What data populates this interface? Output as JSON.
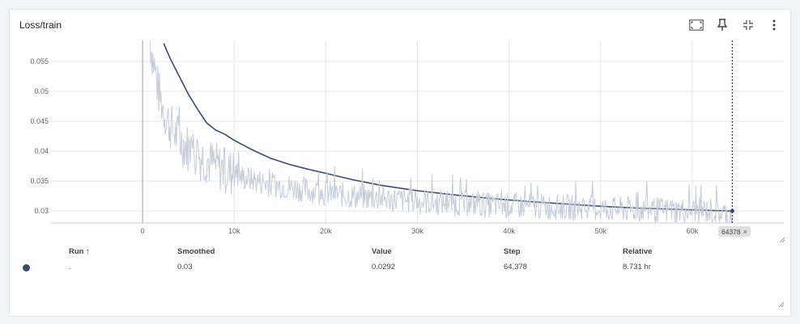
{
  "card": {
    "title": "Loss/train"
  },
  "toolbar": {
    "icons": [
      "fullscreen-icon",
      "pin-icon",
      "fit-domain-icon",
      "more-vert-icon"
    ]
  },
  "colors": {
    "smoothed_line": "#3c4a6b",
    "raw_line": "#c5cbd8",
    "grid": "#e6e6e6",
    "axis": "#9e9e9e",
    "run_dot": "#3c4a6b"
  },
  "chart_data": {
    "type": "line",
    "title": "Loss/train",
    "xlabel": "",
    "ylabel": "",
    "xlim": [
      -10000,
      70000
    ],
    "ylim": [
      0.028,
      0.0585
    ],
    "x_ticks": [
      0,
      10000,
      20000,
      30000,
      40000,
      50000,
      60000
    ],
    "x_tick_labels": [
      "0",
      "10k",
      "20k",
      "30k",
      "40k",
      "50k",
      "60k"
    ],
    "y_ticks": [
      0.03,
      0.035,
      0.04,
      0.045,
      0.05,
      0.055
    ],
    "y_tick_labels": [
      "0.03",
      "0.035",
      "0.04",
      "0.045",
      "0.05",
      "0.055"
    ],
    "grid": true,
    "series": [
      {
        "role": "smoothed",
        "x": [
          2300,
          3000,
          4000,
          5000,
          6000,
          7000,
          8000,
          9000,
          10000,
          12000,
          14000,
          16000,
          18000,
          20000,
          23000,
          26000,
          30000,
          34000,
          38000,
          42000,
          46000,
          50000,
          54000,
          58000,
          62000,
          64378
        ],
        "y": [
          0.058,
          0.0555,
          0.0525,
          0.0495,
          0.047,
          0.0447,
          0.0435,
          0.0428,
          0.0418,
          0.0402,
          0.0388,
          0.0378,
          0.037,
          0.0363,
          0.0352,
          0.0343,
          0.0334,
          0.0327,
          0.0321,
          0.0316,
          0.0312,
          0.0308,
          0.0305,
          0.0303,
          0.0301,
          0.03
        ]
      },
      {
        "role": "raw",
        "x": [
          800,
          1300,
          1800,
          2300,
          2800,
          3300,
          4000,
          5000,
          6000,
          7000,
          8000,
          9000,
          10000,
          12000,
          14000,
          16000,
          18000,
          20000,
          23000,
          26000,
          30000,
          34000,
          38000,
          42000,
          46000,
          50000,
          54000,
          58000,
          62000,
          64378
        ],
        "y": [
          0.0585,
          0.054,
          0.0495,
          0.047,
          0.045,
          0.0435,
          0.042,
          0.0405,
          0.0395,
          0.0385,
          0.0375,
          0.0368,
          0.036,
          0.0352,
          0.0345,
          0.034,
          0.0335,
          0.033,
          0.0325,
          0.0321,
          0.0316,
          0.0313,
          0.031,
          0.0308,
          0.0306,
          0.0304,
          0.0302,
          0.0301,
          0.03,
          0.0292
        ]
      }
    ],
    "cursor_step": 64378,
    "cursor_label": "64378"
  },
  "table": {
    "headers": {
      "run": "Run ↑",
      "smoothed": "Smoothed",
      "value": "Value",
      "step": "Step",
      "relative": "Relative"
    },
    "rows": [
      {
        "run": ".",
        "smoothed": "0.03",
        "value": "0.0292",
        "step": "64,378",
        "relative": "8.731 hr"
      }
    ]
  }
}
